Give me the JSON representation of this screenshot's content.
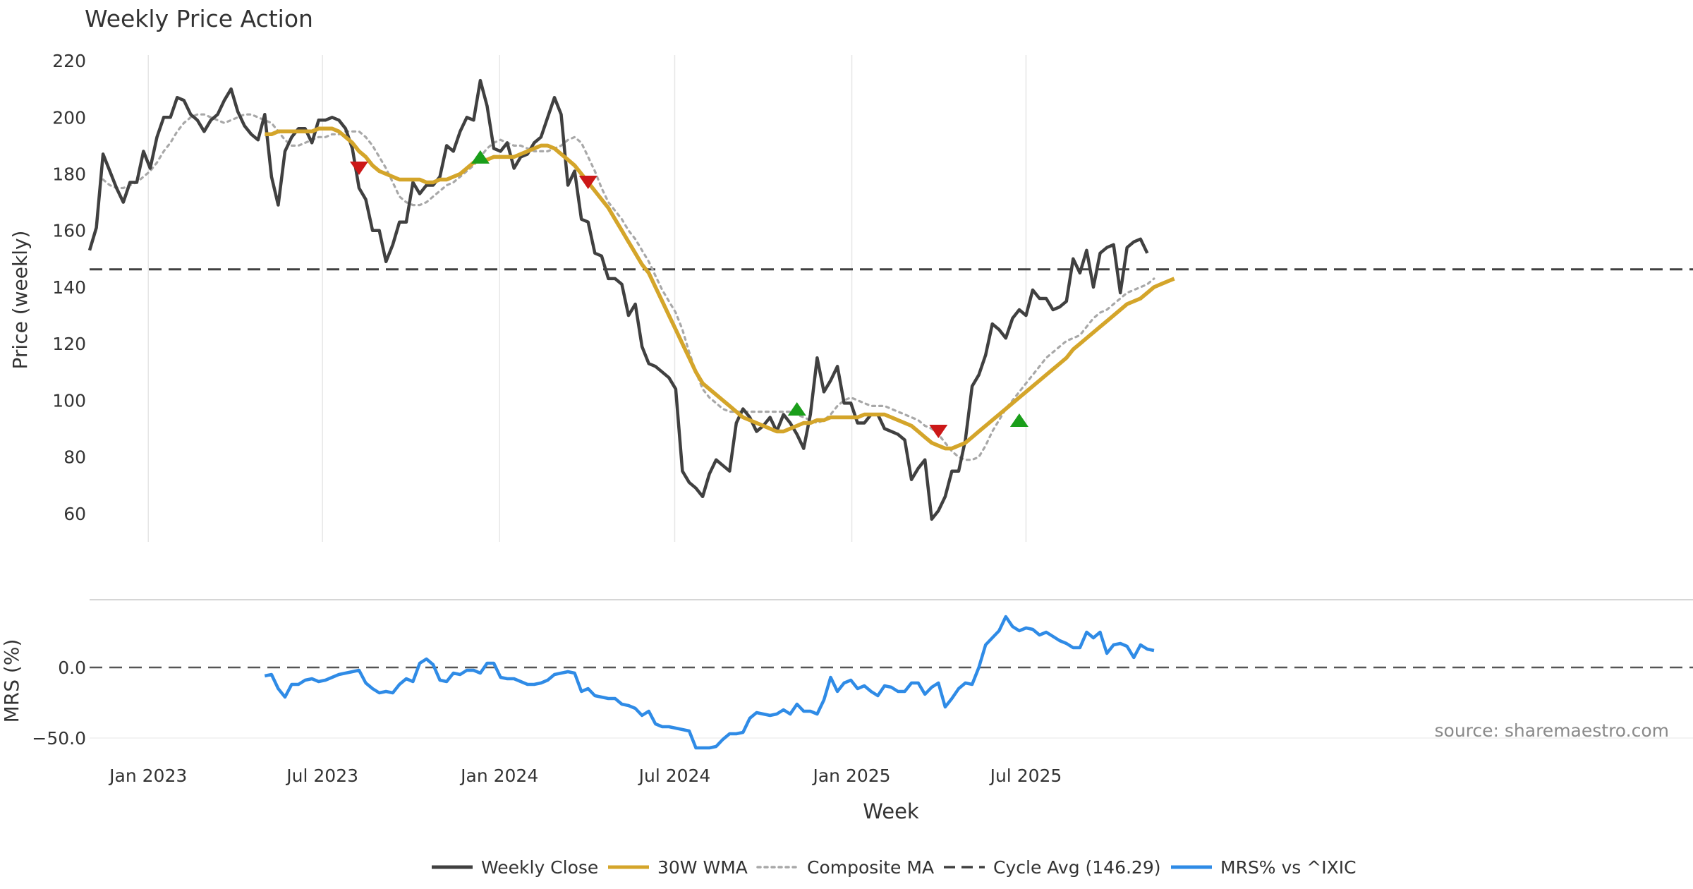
{
  "chart_data": {
    "type": "line",
    "title": "Weekly Price Action",
    "xlabel": "Week",
    "source_note": "source: sharemaestro.com",
    "x_ticks": [
      {
        "date": "2023-01-01",
        "label": "Jan 2023"
      },
      {
        "date": "2023-07-01",
        "label": "Jul 2023"
      },
      {
        "date": "2024-01-01",
        "label": "Jan 2024"
      },
      {
        "date": "2024-07-01",
        "label": "Jul 2024"
      },
      {
        "date": "2025-01-01",
        "label": "Jan 2025"
      },
      {
        "date": "2025-07-01",
        "label": "Jul 2025"
      }
    ],
    "price_panel": {
      "ylabel": "Price (weekly)",
      "ylim": [
        50,
        222
      ],
      "y_ticks": [
        60,
        80,
        100,
        120,
        140,
        160,
        180,
        200,
        220
      ],
      "start_date": "2022-11-01",
      "step_days": 7,
      "cycle_avg": 146.29,
      "weekly_close": [
        153,
        161,
        187,
        181,
        175,
        170,
        177,
        177,
        188,
        182,
        193,
        200,
        200,
        207,
        206,
        201,
        199,
        195,
        199,
        201,
        206,
        210,
        202,
        197,
        194,
        192,
        201,
        179,
        169,
        188,
        193,
        196,
        196,
        191,
        199,
        199,
        200,
        199,
        196,
        189,
        175,
        171,
        160,
        160,
        149,
        155,
        163,
        163,
        177,
        173,
        176,
        176,
        179,
        190,
        188,
        195,
        200,
        199,
        213,
        204,
        189,
        188,
        191,
        182,
        186,
        187,
        191,
        193,
        200,
        207,
        201,
        176,
        181,
        164,
        163,
        152,
        151,
        143,
        143,
        141,
        130,
        134,
        119,
        113,
        112,
        110,
        108,
        104,
        75,
        71,
        69,
        66,
        74,
        79,
        77,
        75,
        92,
        97,
        94,
        89,
        91,
        94,
        89,
        95,
        92,
        88,
        83,
        95,
        115,
        103,
        107,
        112,
        99,
        99,
        92,
        92,
        95,
        95,
        90,
        89,
        88,
        86,
        72,
        76,
        79,
        58,
        61,
        66,
        75,
        75,
        86,
        105,
        109,
        116,
        127,
        125,
        122,
        129,
        132,
        130,
        139,
        136,
        136,
        132,
        133,
        135,
        150,
        145,
        153,
        140,
        152,
        154,
        155,
        138,
        154,
        156,
        157,
        152
      ],
      "wma_30": {
        "start_index": 26,
        "values": [
          194,
          194,
          195,
          195,
          195,
          195,
          195,
          195,
          196,
          196,
          196,
          195,
          193,
          191,
          188,
          186,
          183,
          181,
          180,
          179,
          178,
          178,
          178,
          178,
          177,
          177,
          178,
          178,
          179,
          180,
          182,
          184,
          185,
          185,
          186,
          186,
          186,
          186,
          187,
          188,
          189,
          190,
          190,
          189,
          187,
          185,
          183,
          180,
          177,
          174,
          171,
          168,
          164,
          160,
          156,
          152,
          148,
          145,
          140,
          135,
          130,
          125,
          120,
          115,
          110,
          106,
          104,
          102,
          100,
          98,
          96,
          94,
          93,
          92,
          91,
          90,
          89,
          89,
          90,
          91,
          92,
          92,
          93,
          93,
          94,
          94,
          94,
          94,
          94,
          95,
          95,
          95,
          95,
          94,
          93,
          92,
          91,
          89,
          87,
          85,
          84,
          83,
          83,
          84,
          85,
          87,
          89,
          91,
          93,
          95,
          97,
          99,
          101,
          103,
          105,
          107,
          109,
          111,
          113,
          115,
          118,
          120,
          122,
          124,
          126,
          128,
          130,
          132,
          134,
          135,
          136,
          138,
          140,
          141,
          142,
          143
        ]
      },
      "composite_ma": {
        "start_index": 2,
        "values": [
          178,
          176,
          175,
          175,
          176,
          177,
          179,
          181,
          184,
          188,
          191,
          195,
          198,
          200,
          201,
          201,
          200,
          199,
          198,
          199,
          200,
          201,
          201,
          200,
          199,
          198,
          195,
          192,
          190,
          190,
          191,
          192,
          193,
          193,
          194,
          194,
          195,
          195,
          195,
          193,
          190,
          186,
          182,
          177,
          172,
          170,
          169,
          169,
          170,
          172,
          174,
          176,
          177,
          179,
          181,
          183,
          186,
          189,
          191,
          192,
          191,
          190,
          190,
          189,
          188,
          188,
          188,
          189,
          190,
          192,
          193,
          191,
          186,
          181,
          175,
          170,
          167,
          164,
          160,
          157,
          153,
          149,
          144,
          139,
          135,
          131,
          125,
          117,
          110,
          104,
          101,
          99,
          97,
          96,
          96,
          96,
          96,
          96,
          96,
          96,
          96,
          96,
          96,
          95,
          94,
          93,
          92,
          93,
          95,
          98,
          100,
          101,
          100,
          99,
          98,
          98,
          98,
          97,
          96,
          95,
          94,
          93,
          91,
          90,
          88,
          85,
          82,
          80,
          79,
          79,
          80,
          84,
          89,
          93,
          97,
          100,
          103,
          106,
          109,
          112,
          115,
          117,
          119,
          121,
          122,
          123,
          126,
          129,
          131,
          132,
          134,
          136,
          138,
          139,
          140,
          141,
          143
        ]
      },
      "signals": [
        {
          "index": 40,
          "type": "sell",
          "value": 182
        },
        {
          "index": 58,
          "type": "buy",
          "value": 186
        },
        {
          "index": 74,
          "type": "sell",
          "value": 177
        },
        {
          "index": 105,
          "type": "buy",
          "value": 97
        },
        {
          "index": 126,
          "type": "sell",
          "value": 89
        },
        {
          "index": 138,
          "type": "buy",
          "value": 93
        }
      ]
    },
    "mrs_panel": {
      "ylabel": "MRS (%)",
      "ylim": [
        -62,
        48
      ],
      "y_ticks": [
        {
          "value": 0,
          "label": "0.0"
        },
        {
          "value": -50,
          "label": "−50.0"
        }
      ],
      "zero_line": 0,
      "series_name": "MRS% vs ^IXIC",
      "start_index": 26,
      "values": [
        -6,
        -5,
        -15,
        -21,
        -12,
        -12,
        -9,
        -8,
        -10,
        -9,
        -7,
        -5,
        -4,
        -3,
        -2,
        -11,
        -15,
        -18,
        -17,
        -18,
        -12,
        -8,
        -10,
        3,
        6,
        2,
        -9,
        -10,
        -4,
        -5,
        -2,
        -2,
        -4,
        3,
        3,
        -7,
        -8,
        -8,
        -10,
        -12,
        -12,
        -11,
        -9,
        -5,
        -4,
        -3,
        -4,
        -17,
        -15,
        -20,
        -21,
        -22,
        -22,
        -26,
        -27,
        -29,
        -34,
        -31,
        -40,
        -42,
        -42,
        -43,
        -44,
        -45,
        -57,
        -57,
        -57,
        -56,
        -51,
        -47,
        -47,
        -46,
        -36,
        -32,
        -33,
        -34,
        -33,
        -30,
        -33,
        -26,
        -31,
        -31,
        -33,
        -23,
        -7,
        -17,
        -11,
        -9,
        -15,
        -13,
        -17,
        -20,
        -13,
        -14,
        -17,
        -17,
        -11,
        -11,
        -19,
        -14,
        -11,
        -28,
        -22,
        -15,
        -11,
        -12,
        0,
        16,
        21,
        26,
        36,
        29,
        26,
        28,
        27,
        23,
        25,
        22,
        19,
        17,
        14,
        14,
        25,
        21,
        25,
        10,
        16,
        17,
        15,
        7,
        16,
        13,
        12
      ]
    },
    "legend": [
      {
        "label": "Weekly Close",
        "color": "#404040",
        "style": "solid"
      },
      {
        "label": "30W WMA",
        "color": "#d4a52a",
        "style": "solid"
      },
      {
        "label": "Composite MA",
        "color": "#a8a8a8",
        "style": "dotted"
      },
      {
        "label": "Cycle Avg (146.29)",
        "color": "#404040",
        "style": "dashed"
      },
      {
        "label": "MRS% vs ^IXIC",
        "color": "#2f8be6",
        "style": "solid"
      }
    ],
    "colors": {
      "close": "#404040",
      "wma": "#d4a52a",
      "composite": "#a8a8a8",
      "cycle": "#404040",
      "mrs": "#2f8be6",
      "buy": "#1a9e1a",
      "sell": "#cc1818",
      "grid": "#e6e6e6"
    }
  }
}
